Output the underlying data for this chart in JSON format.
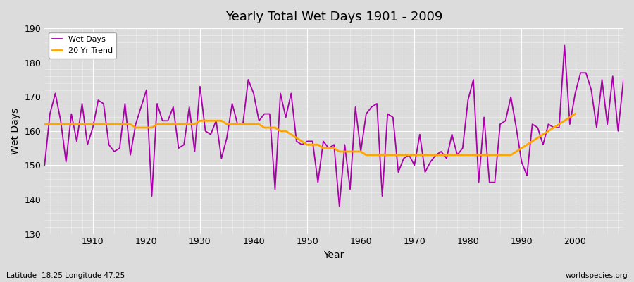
{
  "title": "Yearly Total Wet Days 1901 - 2009",
  "xlabel": "Year",
  "ylabel": "Wet Days",
  "subtitle_left": "Latitude -18.25 Longitude 47.25",
  "subtitle_right": "worldspecies.org",
  "line_color": "#AA00AA",
  "trend_color": "#FFA500",
  "bg_color": "#DCDCDC",
  "plot_bg_color": "#DCDCDC",
  "ylim": [
    130,
    190
  ],
  "xlim": [
    1901,
    2009
  ],
  "yticks": [
    130,
    140,
    150,
    160,
    170,
    180,
    190
  ],
  "xticks": [
    1910,
    1920,
    1930,
    1940,
    1950,
    1960,
    1970,
    1980,
    1990,
    2000
  ],
  "years": [
    1901,
    1902,
    1903,
    1904,
    1905,
    1906,
    1907,
    1908,
    1909,
    1910,
    1911,
    1912,
    1913,
    1914,
    1915,
    1916,
    1917,
    1918,
    1919,
    1920,
    1921,
    1922,
    1923,
    1924,
    1925,
    1926,
    1927,
    1928,
    1929,
    1930,
    1931,
    1932,
    1933,
    1934,
    1935,
    1936,
    1937,
    1938,
    1939,
    1940,
    1941,
    1942,
    1943,
    1944,
    1945,
    1946,
    1947,
    1948,
    1949,
    1950,
    1951,
    1952,
    1953,
    1954,
    1955,
    1956,
    1957,
    1958,
    1959,
    1960,
    1961,
    1962,
    1963,
    1964,
    1965,
    1966,
    1967,
    1968,
    1969,
    1970,
    1971,
    1972,
    1973,
    1974,
    1975,
    1976,
    1977,
    1978,
    1979,
    1980,
    1981,
    1982,
    1983,
    1984,
    1985,
    1986,
    1987,
    1988,
    1989,
    1990,
    1991,
    1992,
    1993,
    1994,
    1995,
    1996,
    1997,
    1998,
    1999,
    2000,
    2001,
    2002,
    2003,
    2004,
    2005,
    2006,
    2007,
    2008,
    2009
  ],
  "wet_days": [
    150,
    165,
    171,
    163,
    151,
    165,
    157,
    168,
    156,
    161,
    169,
    168,
    156,
    154,
    155,
    168,
    153,
    162,
    167,
    172,
    141,
    168,
    163,
    163,
    167,
    155,
    156,
    167,
    154,
    173,
    160,
    159,
    163,
    152,
    158,
    168,
    162,
    162,
    175,
    171,
    163,
    165,
    165,
    143,
    171,
    164,
    171,
    157,
    156,
    157,
    157,
    145,
    157,
    155,
    156,
    138,
    156,
    143,
    167,
    154,
    165,
    167,
    168,
    141,
    165,
    164,
    148,
    152,
    153,
    150,
    159,
    148,
    151,
    153,
    154,
    152,
    159,
    153,
    155,
    169,
    175,
    145,
    164,
    145,
    145,
    162,
    163,
    170,
    161,
    151,
    147,
    162,
    161,
    156,
    162,
    161,
    161,
    185,
    162,
    171,
    177,
    177,
    172,
    161,
    175,
    162,
    176,
    160,
    175
  ],
  "trend": [
    162,
    162,
    162,
    162,
    162,
    162,
    162,
    162,
    162,
    162,
    162,
    162,
    162,
    162,
    162,
    162,
    162,
    161,
    161,
    161,
    161,
    162,
    162,
    162,
    162,
    162,
    162,
    162,
    162,
    163,
    163,
    163,
    163,
    163,
    162,
    162,
    162,
    162,
    162,
    162,
    162,
    161,
    161,
    161,
    160,
    160,
    159,
    158,
    157,
    156,
    156,
    156,
    155,
    155,
    155,
    154,
    154,
    154,
    154,
    154,
    153,
    153,
    153,
    153,
    153,
    153,
    153,
    153,
    153,
    153,
    153,
    153,
    153,
    153,
    153,
    153,
    153,
    153,
    153,
    153,
    153,
    153,
    153,
    153,
    153,
    153,
    153,
    153,
    154,
    155,
    156,
    157,
    158,
    159,
    160,
    161,
    162,
    163,
    164,
    165,
    null,
    null,
    null,
    null,
    null,
    null,
    null,
    null,
    null
  ]
}
